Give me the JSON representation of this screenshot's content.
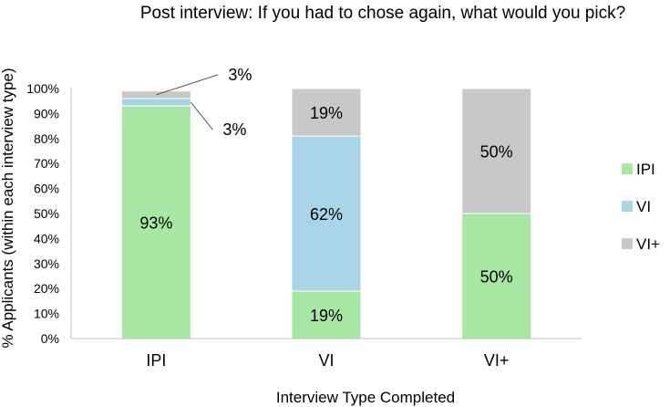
{
  "chart_data": {
    "type": "bar",
    "stacked": true,
    "title": "Post interview: If you had to chose again, what would you pick?",
    "xlabel": "Interview Type Completed",
    "ylabel": "% Applicants (within each interview type)",
    "categories": [
      "IPI",
      "VI",
      "VI+"
    ],
    "ylim": [
      0,
      100
    ],
    "yticks": [
      0,
      10,
      20,
      30,
      40,
      50,
      60,
      70,
      80,
      90,
      100
    ],
    "ytick_suffix": "%",
    "grid": false,
    "legend_position": "right",
    "series": [
      {
        "name": "IPI",
        "color": "#a8e6a3",
        "values": [
          93,
          19,
          50
        ],
        "labels": [
          "93%",
          "19%",
          "50%"
        ]
      },
      {
        "name": "VI",
        "color": "#a9d4e6",
        "values": [
          3,
          62,
          0
        ],
        "labels": [
          "3%",
          "62%",
          ""
        ]
      },
      {
        "name": "VI+",
        "color": "#c8c8c8",
        "values": [
          3,
          19,
          50
        ],
        "labels": [
          "3%",
          "19%",
          "50%"
        ]
      }
    ]
  }
}
